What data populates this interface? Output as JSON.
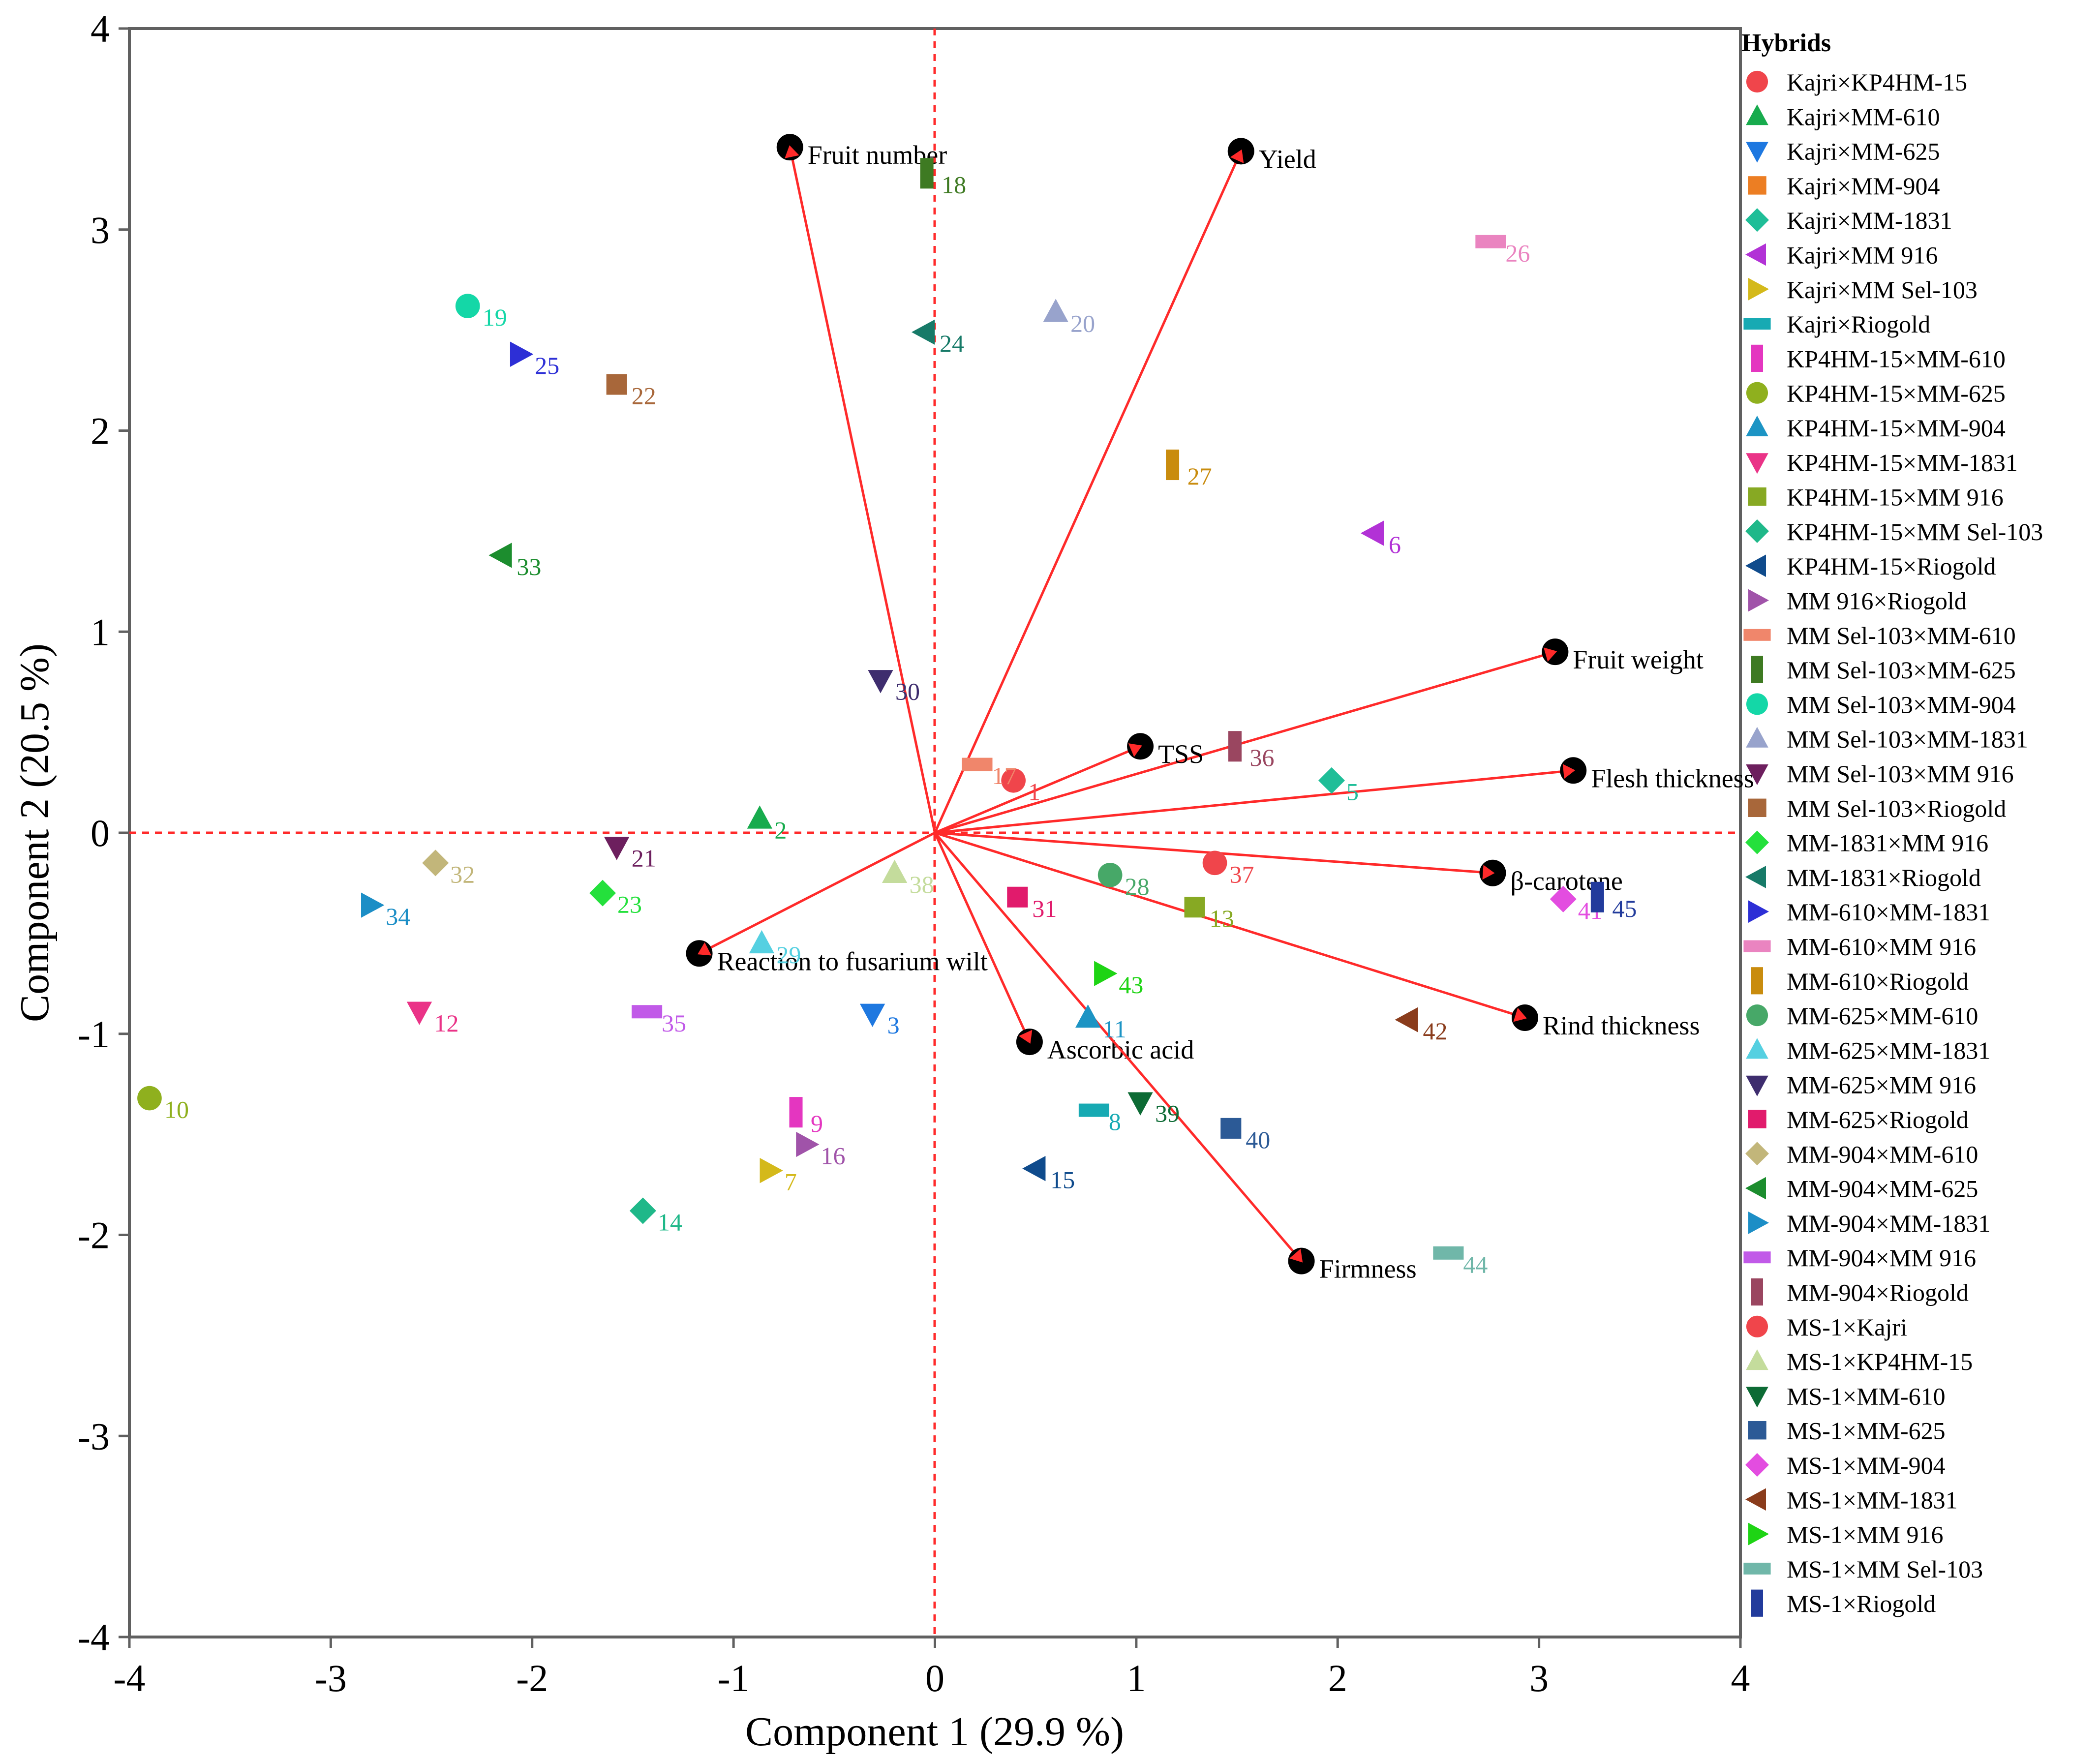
{
  "chart_data": {
    "type": "scatter",
    "subtype": "pca-biplot",
    "xlabel": "Component 1  (29.9 %)",
    "ylabel": "Component 2  (20.5 %)",
    "xlim": [
      -4,
      4
    ],
    "ylim": [
      -4,
      4
    ],
    "xticks": [
      -4,
      -3,
      -2,
      -1,
      0,
      1,
      2,
      3,
      4
    ],
    "yticks": [
      -4,
      -3,
      -2,
      -1,
      0,
      1,
      2,
      3,
      4
    ],
    "reference_lines": {
      "x": 0,
      "y": 0,
      "style": "dashed",
      "color": "#ff2a2a"
    },
    "legend_title": "Hybrids",
    "legend_position": "right",
    "loadings": [
      {
        "label": "Fruit number",
        "x": -0.72,
        "y": 3.41
      },
      {
        "label": "Yield",
        "x": 1.52,
        "y": 3.39
      },
      {
        "label": "Fruit weight",
        "x": 3.08,
        "y": 0.9
      },
      {
        "label": "TSS",
        "x": 1.02,
        "y": 0.43
      },
      {
        "label": "Flesh thickness",
        "x": 3.17,
        "y": 0.31
      },
      {
        "label": "β-carotene",
        "x": 2.77,
        "y": -0.2
      },
      {
        "label": "Rind thickness",
        "x": 2.93,
        "y": -0.92
      },
      {
        "label": "Reaction to fusarium wilt",
        "x": -1.17,
        "y": -0.6
      },
      {
        "label": "Ascorbic acid",
        "x": 0.47,
        "y": -1.04
      },
      {
        "label": "Firmness",
        "x": 1.82,
        "y": -2.13
      }
    ],
    "series": [
      {
        "id": 1,
        "name": "Kajri×KP4HM-15",
        "marker": "circle",
        "color": "#f0454b",
        "x": 0.39,
        "y": 0.26
      },
      {
        "id": 2,
        "name": "Kajri×MM-610",
        "marker": "triangle-up",
        "color": "#17ab4d",
        "x": -0.87,
        "y": 0.07
      },
      {
        "id": 3,
        "name": "Kajri×MM-625",
        "marker": "triangle-down",
        "color": "#1e78e0",
        "x": -0.31,
        "y": -0.9
      },
      {
        "id": 4,
        "name": "Kajri×MM-904",
        "marker": "square",
        "color": "#ec7e23",
        "x": null,
        "y": null
      },
      {
        "id": 5,
        "name": "Kajri×MM-1831",
        "marker": "diamond",
        "color": "#1fbe98",
        "x": 1.97,
        "y": 0.26
      },
      {
        "id": 6,
        "name": "Kajri×MM 916",
        "marker": "triangle-left",
        "color": "#b232d6",
        "x": 2.18,
        "y": 1.49
      },
      {
        "id": 7,
        "name": "Kajri×MM Sel-103",
        "marker": "triangle-right",
        "color": "#d4b91a",
        "x": -0.82,
        "y": -1.68
      },
      {
        "id": 8,
        "name": "Kajri×Riogold",
        "marker": "hbar",
        "color": "#17aab3",
        "x": 0.79,
        "y": -1.38
      },
      {
        "id": 9,
        "name": "KP4HM-15×MM-610",
        "marker": "vbar",
        "color": "#e436c0",
        "x": -0.69,
        "y": -1.39
      },
      {
        "id": 10,
        "name": "KP4HM-15×MM-625",
        "marker": "circle",
        "color": "#8fb01e",
        "x": -3.9,
        "y": -1.32
      },
      {
        "id": 11,
        "name": "KP4HM-15×MM-904",
        "marker": "triangle-up",
        "color": "#1c94c4",
        "x": 0.76,
        "y": -0.92
      },
      {
        "id": 12,
        "name": "KP4HM-15×MM-1831",
        "marker": "triangle-down",
        "color": "#ea3387",
        "x": -2.56,
        "y": -0.89
      },
      {
        "id": 13,
        "name": "KP4HM-15×MM 916",
        "marker": "square",
        "color": "#87a923",
        "x": 1.29,
        "y": -0.37
      },
      {
        "id": 14,
        "name": "KP4HM-15×MM Sel-103",
        "marker": "diamond",
        "color": "#1fb889",
        "x": -1.45,
        "y": -1.88
      },
      {
        "id": 15,
        "name": "KP4HM-15×Riogold",
        "marker": "triangle-left",
        "color": "#0f4b8c",
        "x": 0.5,
        "y": -1.67
      },
      {
        "id": 16,
        "name": "MM 916×Riogold",
        "marker": "triangle-right",
        "color": "#a053a9",
        "x": -0.64,
        "y": -1.55
      },
      {
        "id": 17,
        "name": "MM Sel-103×MM-610",
        "marker": "hbar",
        "color": "#f0866b",
        "x": 0.21,
        "y": 0.34
      },
      {
        "id": 18,
        "name": "MM Sel-103×MM-625",
        "marker": "vbar",
        "color": "#3e7a22",
        "x": -0.04,
        "y": 3.28
      },
      {
        "id": 19,
        "name": "MM Sel-103×MM-904",
        "marker": "circle",
        "color": "#14d7a7",
        "x": -2.32,
        "y": 2.62
      },
      {
        "id": 20,
        "name": "MM Sel-103×MM-1831",
        "marker": "triangle-up",
        "color": "#98a3cc",
        "x": 0.6,
        "y": 2.59
      },
      {
        "id": 21,
        "name": "MM Sel-103×MM 916",
        "marker": "triangle-down",
        "color": "#6d1f5e",
        "x": -1.58,
        "y": -0.07
      },
      {
        "id": 22,
        "name": "MM Sel-103×Riogold",
        "marker": "square",
        "color": "#a8673a",
        "x": -1.58,
        "y": 2.23
      },
      {
        "id": 23,
        "name": "MM-1831×MM 916",
        "marker": "diamond",
        "color": "#24e03c",
        "x": -1.65,
        "y": -0.3
      },
      {
        "id": 24,
        "name": "MM-1831×Riogold",
        "marker": "triangle-left",
        "color": "#177a68",
        "x": -0.05,
        "y": 2.49
      },
      {
        "id": 25,
        "name": "MM-610×MM-1831",
        "marker": "triangle-right",
        "color": "#2d2fd6",
        "x": -2.06,
        "y": 2.38
      },
      {
        "id": 26,
        "name": "MM-610×MM 916",
        "marker": "hbar",
        "color": "#ea84c0",
        "x": 2.76,
        "y": 2.94
      },
      {
        "id": 27,
        "name": "MM-610×Riogold",
        "marker": "vbar",
        "color": "#c98c0e",
        "x": 1.18,
        "y": 1.83
      },
      {
        "id": 28,
        "name": "MM-625×MM-610",
        "marker": "circle",
        "color": "#47a868",
        "x": 0.87,
        "y": -0.21
      },
      {
        "id": 29,
        "name": "MM-625×MM-1831",
        "marker": "triangle-up",
        "color": "#55d0e1",
        "x": -0.86,
        "y": -0.55
      },
      {
        "id": 30,
        "name": "MM-625×MM 916",
        "marker": "triangle-down",
        "color": "#3e2d6e",
        "x": -0.27,
        "y": 0.76
      },
      {
        "id": 31,
        "name": "MM-625×Riogold",
        "marker": "square",
        "color": "#e11b6c",
        "x": 0.41,
        "y": -0.32
      },
      {
        "id": 32,
        "name": "MM-904×MM-610",
        "marker": "diamond",
        "color": "#c2b67a",
        "x": -2.48,
        "y": -0.15
      },
      {
        "id": 33,
        "name": "MM-904×MM-625",
        "marker": "triangle-left",
        "color": "#1c8d2e",
        "x": -2.15,
        "y": 1.38
      },
      {
        "id": 34,
        "name": "MM-904×MM-1831",
        "marker": "triangle-right",
        "color": "#1c8ec6",
        "x": -2.8,
        "y": -0.36
      },
      {
        "id": 35,
        "name": "MM-904×MM 916",
        "marker": "hbar",
        "color": "#c15ae8",
        "x": -1.43,
        "y": -0.89
      },
      {
        "id": 36,
        "name": "MM-904×Riogold",
        "marker": "vbar",
        "color": "#9a4660",
        "x": 1.49,
        "y": 0.43
      },
      {
        "id": 37,
        "name": "MS-1×Kajri",
        "marker": "circle",
        "color": "#f0454b",
        "x": 1.39,
        "y": -0.15
      },
      {
        "id": 38,
        "name": "MS-1×KP4HM-15",
        "marker": "triangle-up",
        "color": "#c4dc9c",
        "x": -0.2,
        "y": -0.2
      },
      {
        "id": 39,
        "name": "MS-1×MM-610",
        "marker": "triangle-down",
        "color": "#0d6b35",
        "x": 1.02,
        "y": -1.34
      },
      {
        "id": 40,
        "name": "MS-1×MM-625",
        "marker": "square",
        "color": "#2c5a96",
        "x": 1.47,
        "y": -1.47
      },
      {
        "id": 41,
        "name": "MS-1×MM-904",
        "marker": "diamond",
        "color": "#e34de0",
        "x": 3.12,
        "y": -0.33
      },
      {
        "id": 42,
        "name": "MS-1×MM-1831",
        "marker": "triangle-left",
        "color": "#8a3c1c",
        "x": 2.35,
        "y": -0.93
      },
      {
        "id": 43,
        "name": "MS-1×MM 916",
        "marker": "triangle-right",
        "color": "#1ed414",
        "x": 0.84,
        "y": -0.7
      },
      {
        "id": 44,
        "name": "MS-1×MM Sel-103",
        "marker": "hbar",
        "color": "#70b7a9",
        "x": 2.55,
        "y": -2.09
      },
      {
        "id": 45,
        "name": "MS-1×Riogold",
        "marker": "vbar",
        "color": "#223b9c",
        "x": 3.29,
        "y": -0.32
      }
    ]
  }
}
